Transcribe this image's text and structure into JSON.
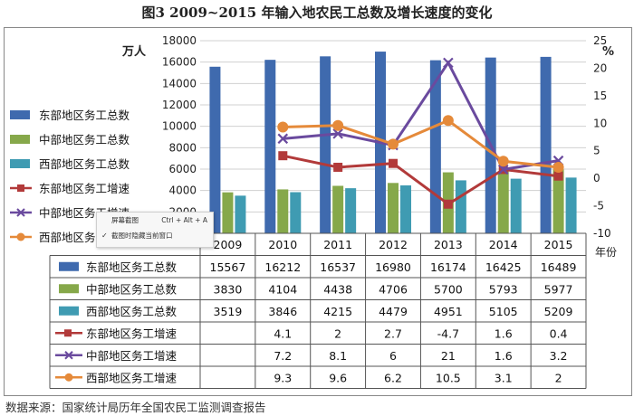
{
  "title": "图3  2009~2015 年输入地农民工总数及增长速度的变化",
  "source_note": "数据来源：国家统计局历年全国农民工监测调查报告",
  "context_menu": {
    "items": [
      {
        "label": "屏幕截图",
        "hint": "Ctrl + Alt + A",
        "checked": false
      },
      {
        "label": "截图时隐藏当前窗口",
        "hint": "",
        "checked": true
      }
    ]
  },
  "chart_data": {
    "type": "bar",
    "title": "图3  2009~2015 年输入地农民工总数及增长速度的变化",
    "categories": [
      "2009",
      "2010",
      "2011",
      "2012",
      "2013",
      "2014",
      "2015"
    ],
    "x_unit_label": "年份",
    "y_left": {
      "label": "万人",
      "min": 0,
      "max": 18000,
      "step": 2000,
      "ticks": [
        "0",
        "2000",
        "4000",
        "6000",
        "8000",
        "10000",
        "12000",
        "14000",
        "16000",
        "18000"
      ]
    },
    "y_right": {
      "label": "%",
      "min": -10,
      "max": 25,
      "step": 5,
      "ticks": [
        "-10",
        "-5",
        "0",
        "5",
        "10",
        "15",
        "20",
        "25"
      ]
    },
    "bar_series": [
      {
        "name": "东部地区务工总数",
        "color": "#3f6aae",
        "display": [
          "15567",
          "16212",
          "16537",
          "16980",
          "16174",
          "16425",
          "16489"
        ],
        "values": [
          15567,
          16212,
          16537,
          16980,
          16174,
          16425,
          16489
        ]
      },
      {
        "name": "中部地区务工总数",
        "color": "#86a84a",
        "display": [
          "3830",
          "4104",
          "4438",
          "4706",
          "5700",
          "5793",
          "5977"
        ],
        "values": [
          3830,
          4104,
          4438,
          4706,
          5700,
          5793,
          5977
        ]
      },
      {
        "name": "西部地区务工总数",
        "color": "#3f9bb2",
        "display": [
          "3519",
          "3846",
          "4215",
          "4479",
          "4951",
          "5105",
          "5209"
        ],
        "values": [
          3519,
          3846,
          4215,
          4479,
          4951,
          5105,
          5209
        ]
      }
    ],
    "line_series": [
      {
        "name": "东部地区务工增速",
        "color": "#b23a3a",
        "marker": "square",
        "display": [
          "",
          "4.1",
          "2",
          "2.7",
          "-4.7",
          "1.6",
          "0.4"
        ],
        "values": [
          null,
          4.1,
          2,
          2.7,
          -4.7,
          1.6,
          0.4
        ]
      },
      {
        "name": "中部地区务工增速",
        "color": "#6a4a9e",
        "marker": "x",
        "display": [
          "",
          "7.2",
          "8.1",
          "6",
          "21",
          "1.6",
          "3.2"
        ],
        "values": [
          null,
          7.2,
          8.1,
          6,
          21,
          1.6,
          3.2
        ]
      },
      {
        "name": "西部地区务工增速",
        "color": "#e58a3a",
        "marker": "circle",
        "display": [
          "",
          "9.3",
          "9.6",
          "6.2",
          "10.5",
          "3.1",
          "2"
        ],
        "values": [
          null,
          9.3,
          9.6,
          6.2,
          10.5,
          3.1,
          2
        ]
      }
    ]
  }
}
